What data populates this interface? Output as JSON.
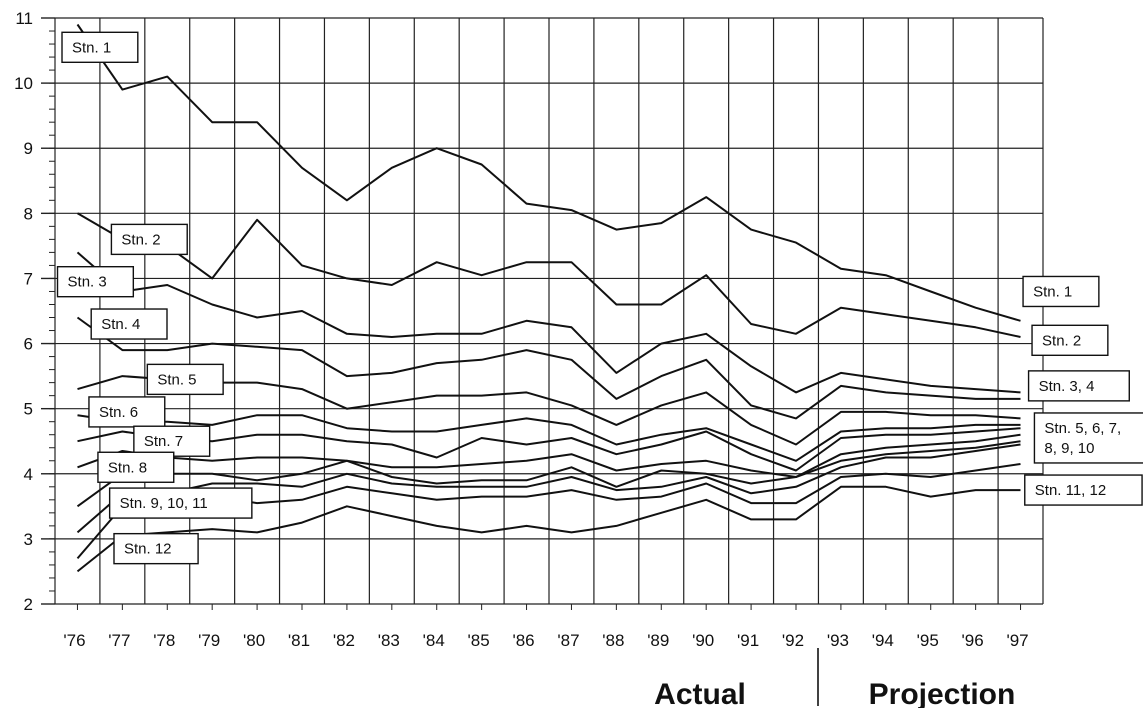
{
  "chart_data": {
    "type": "line",
    "x": [
      "'76",
      "'77",
      "'78",
      "'79",
      "'80",
      "'81",
      "'82",
      "'83",
      "'84",
      "'85",
      "'86",
      "'87",
      "'88",
      "'89",
      "'90",
      "'91",
      "'92",
      "'93",
      "'94",
      "'95",
      "'96",
      "'97"
    ],
    "ylim": [
      2,
      11
    ],
    "yticks": [
      "2",
      "3",
      "4",
      "5",
      "6",
      "7",
      "8",
      "9",
      "10",
      "11"
    ],
    "grid": true,
    "regions": [
      "Actual",
      "Projection"
    ],
    "series": [
      {
        "values": [
          10.9,
          9.9,
          10.1,
          9.4,
          9.4,
          8.7,
          8.2,
          8.7,
          9.0,
          8.75,
          8.15,
          8.05,
          7.75,
          7.85,
          8.25,
          7.75,
          7.55,
          7.15,
          7.05,
          6.8,
          6.55,
          6.35
        ]
      },
      {
        "values": [
          8.0,
          7.6,
          7.5,
          7.0,
          7.9,
          7.2,
          7.0,
          6.9,
          7.25,
          7.05,
          7.25,
          7.25,
          6.6,
          6.6,
          7.05,
          6.3,
          6.15,
          6.55,
          6.45,
          6.35,
          6.25,
          6.1
        ]
      },
      {
        "values": [
          7.4,
          6.8,
          6.9,
          6.6,
          6.4,
          6.5,
          6.15,
          6.1,
          6.15,
          6.15,
          6.35,
          6.25,
          5.55,
          6.0,
          6.15,
          5.65,
          5.25,
          5.55,
          5.45,
          5.35,
          5.3,
          5.25
        ]
      },
      {
        "values": [
          6.4,
          5.9,
          5.9,
          6.0,
          5.95,
          5.9,
          5.5,
          5.55,
          5.7,
          5.75,
          5.9,
          5.75,
          5.15,
          5.5,
          5.75,
          5.05,
          4.85,
          5.35,
          5.25,
          5.2,
          5.15,
          5.15
        ]
      },
      {
        "values": [
          5.3,
          5.5,
          5.45,
          5.4,
          5.4,
          5.3,
          5.0,
          5.1,
          5.2,
          5.2,
          5.25,
          5.05,
          4.75,
          5.05,
          5.25,
          4.75,
          4.45,
          4.95,
          4.95,
          4.9,
          4.9,
          4.85
        ]
      },
      {
        "values": [
          4.9,
          4.8,
          4.8,
          4.75,
          4.9,
          4.9,
          4.7,
          4.65,
          4.65,
          4.75,
          4.85,
          4.75,
          4.45,
          4.6,
          4.7,
          4.45,
          4.2,
          4.65,
          4.7,
          4.7,
          4.75,
          4.75
        ]
      },
      {
        "values": [
          4.5,
          4.65,
          4.55,
          4.5,
          4.6,
          4.6,
          4.5,
          4.45,
          4.25,
          4.55,
          4.45,
          4.55,
          4.3,
          4.45,
          4.65,
          4.3,
          4.05,
          4.55,
          4.6,
          4.6,
          4.65,
          4.7
        ]
      },
      {
        "values": [
          4.1,
          4.35,
          4.25,
          4.2,
          4.25,
          4.25,
          4.2,
          4.1,
          4.1,
          4.15,
          4.2,
          4.3,
          4.05,
          4.15,
          4.2,
          4.05,
          3.95,
          4.3,
          4.4,
          4.45,
          4.5,
          4.6
        ]
      },
      {
        "values": [
          3.5,
          4.0,
          4.0,
          4.0,
          3.9,
          4.0,
          4.2,
          3.95,
          3.85,
          3.9,
          3.9,
          4.1,
          3.8,
          4.05,
          4.0,
          3.85,
          3.95,
          4.2,
          4.3,
          4.35,
          4.4,
          4.5
        ]
      },
      {
        "values": [
          3.1,
          3.7,
          3.7,
          3.85,
          3.85,
          3.8,
          4.0,
          3.85,
          3.8,
          3.8,
          3.8,
          3.95,
          3.75,
          3.8,
          3.95,
          3.7,
          3.8,
          4.1,
          4.25,
          4.25,
          4.35,
          4.45
        ]
      },
      {
        "values": [
          2.7,
          3.5,
          3.6,
          3.65,
          3.55,
          3.6,
          3.8,
          3.7,
          3.6,
          3.65,
          3.65,
          3.75,
          3.6,
          3.65,
          3.85,
          3.55,
          3.55,
          3.95,
          4.0,
          3.95,
          4.05,
          4.15
        ]
      },
      {
        "values": [
          2.5,
          3.05,
          3.1,
          3.15,
          3.1,
          3.25,
          3.5,
          3.35,
          3.2,
          3.1,
          3.2,
          3.1,
          3.2,
          3.4,
          3.6,
          3.3,
          3.3,
          3.8,
          3.8,
          3.65,
          3.75,
          3.75
        ]
      }
    ],
    "labels": [
      {
        "text": "Stn. 1",
        "pos": [
          0.5,
          10.55
        ]
      },
      {
        "text": "Stn. 2",
        "pos": [
          1.6,
          7.6
        ]
      },
      {
        "text": "Stn. 3",
        "pos": [
          0.4,
          6.95
        ]
      },
      {
        "text": "Stn. 4",
        "pos": [
          1.15,
          6.3
        ]
      },
      {
        "text": "Stn. 5",
        "pos": [
          2.4,
          5.45
        ]
      },
      {
        "text": "Stn. 6",
        "pos": [
          1.1,
          4.95
        ]
      },
      {
        "text": "Stn. 7",
        "pos": [
          2.1,
          4.5
        ]
      },
      {
        "text": "Stn. 8",
        "pos": [
          1.3,
          4.1
        ]
      },
      {
        "text": "Stn. 9, 10, 11",
        "pos": [
          2.3,
          3.55
        ]
      },
      {
        "text": "Stn. 12",
        "pos": [
          1.75,
          2.85
        ]
      },
      {
        "text": "Stn. 1",
        "pos": [
          21.9,
          6.8
        ]
      },
      {
        "text": "Stn. 2",
        "pos": [
          22.1,
          6.05
        ]
      },
      {
        "text": "Stn. 3, 4",
        "pos": [
          22.3,
          5.35
        ]
      },
      {
        "text": "Stn. 5, 6, 7,|8, 9, 10",
        "pos": [
          22.8,
          4.55
        ]
      },
      {
        "text": "Stn. 11, 12",
        "pos": [
          22.4,
          3.75
        ]
      }
    ]
  }
}
